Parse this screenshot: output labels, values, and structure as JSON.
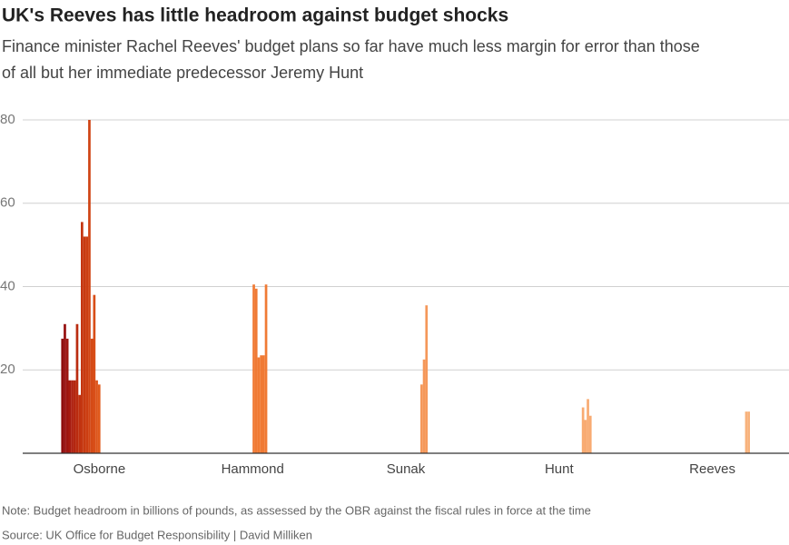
{
  "chart_data": {
    "type": "bar",
    "title": "UK's Reeves has little headroom against budget shocks",
    "subtitle": [
      "Finance minister Rachel Reeves' budget plans so far have much less margin for error than those",
      "of all but her immediate predecessor Jeremy Hunt"
    ],
    "note": "Note: Budget headroom in billions of pounds, as assessed by the OBR against the fiscal rules in force at the time",
    "source": "Source: UK Office for Budget Responsibility | David Milliken",
    "ylim": [
      0,
      80
    ],
    "yticks": [
      20,
      40,
      60,
      80
    ],
    "grid": true,
    "groups": [
      {
        "name": "Osborne",
        "values": [
          27.5,
          31,
          27.5,
          17.5,
          17.5,
          17.5,
          31,
          14,
          55.5,
          52,
          52,
          80,
          27.5,
          38,
          17.5,
          16.5
        ],
        "colors": [
          "#8e0d0d",
          "#961010",
          "#9e1510",
          "#a61a10",
          "#ae2010",
          "#b42610",
          "#ba2c10",
          "#c03210",
          "#c43610",
          "#c83a10",
          "#cc3e12",
          "#d04414",
          "#d44a16",
          "#d84e18",
          "#dc541a",
          "#e05a1c"
        ]
      },
      {
        "name": "Hammond",
        "values": [
          40.5,
          39.5,
          23,
          23.5,
          23.5,
          40.5
        ],
        "color": "#f07a34"
      },
      {
        "name": "Sunak",
        "values": [
          16.5,
          22.5,
          35.5
        ],
        "color": "#f5985a"
      },
      {
        "name": "Hunt",
        "values": [
          11,
          8,
          13,
          9
        ],
        "color": "#f8ab72"
      },
      {
        "name": "Reeves",
        "values": [
          10,
          10
        ],
        "color": "#f8b27c"
      }
    ]
  }
}
